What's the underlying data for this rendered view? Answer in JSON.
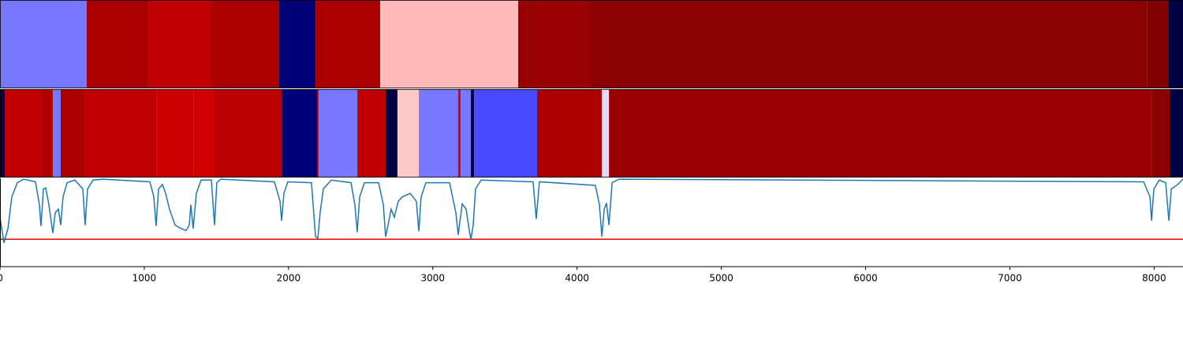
{
  "chart_data": [
    {
      "type": "segments",
      "xlim": [
        0,
        8200
      ],
      "segments": [
        {
          "start": 0,
          "end": 601,
          "color": "#7777ff"
        },
        {
          "start": 601,
          "end": 1028,
          "color": "#aa0000"
        },
        {
          "start": 1028,
          "end": 1465,
          "color": "#c00000"
        },
        {
          "start": 1465,
          "end": 1935,
          "color": "#aa0000"
        },
        {
          "start": 1935,
          "end": 2187,
          "color": "#000077"
        },
        {
          "start": 2187,
          "end": 2635,
          "color": "#aa0000"
        },
        {
          "start": 2635,
          "end": 3592,
          "color": "#ffb9b9"
        },
        {
          "start": 3592,
          "end": 4100,
          "color": "#990000"
        },
        {
          "start": 4100,
          "end": 7950,
          "color": "#8b0000"
        },
        {
          "start": 7950,
          "end": 8097,
          "color": "#800000"
        },
        {
          "start": 8097,
          "end": 8200,
          "color": "#000044"
        }
      ]
    },
    {
      "type": "segments",
      "xlim": [
        0,
        8200
      ],
      "segments": [
        {
          "start": 0,
          "end": 33,
          "color": "#000044"
        },
        {
          "start": 33,
          "end": 284,
          "color": "#c00000"
        },
        {
          "start": 284,
          "end": 366,
          "color": "#b00000"
        },
        {
          "start": 366,
          "end": 421,
          "color": "#7777ff"
        },
        {
          "start": 421,
          "end": 590,
          "color": "#aa0000"
        },
        {
          "start": 590,
          "end": 1083,
          "color": "#c00000"
        },
        {
          "start": 1083,
          "end": 1340,
          "color": "#cc0000"
        },
        {
          "start": 1340,
          "end": 1487,
          "color": "#d00000"
        },
        {
          "start": 1487,
          "end": 1952,
          "color": "#bb0000"
        },
        {
          "start": 1952,
          "end": 2198,
          "color": "#000077"
        },
        {
          "start": 2198,
          "end": 2209,
          "color": "#c00000"
        },
        {
          "start": 2209,
          "end": 2477,
          "color": "#7777ff"
        },
        {
          "start": 2477,
          "end": 2673,
          "color": "#c00000"
        },
        {
          "start": 2673,
          "end": 2755,
          "color": "#000044"
        },
        {
          "start": 2755,
          "end": 2903,
          "color": "#ffc8c8"
        },
        {
          "start": 2903,
          "end": 3176,
          "color": "#7777ff"
        },
        {
          "start": 3176,
          "end": 3193,
          "color": "#dd0000"
        },
        {
          "start": 3193,
          "end": 3264,
          "color": "#7777ff"
        },
        {
          "start": 3264,
          "end": 3286,
          "color": "#000044"
        },
        {
          "start": 3286,
          "end": 3723,
          "color": "#4848ff"
        },
        {
          "start": 3723,
          "end": 4172,
          "color": "#aa0000"
        },
        {
          "start": 4172,
          "end": 4221,
          "color": "#ddddff"
        },
        {
          "start": 4221,
          "end": 7982,
          "color": "#9b0000"
        },
        {
          "start": 7982,
          "end": 8108,
          "color": "#8b0000"
        },
        {
          "start": 8108,
          "end": 8200,
          "color": "#000044"
        }
      ]
    },
    {
      "type": "line",
      "xlim": [
        0,
        8200
      ],
      "ylim": [
        0,
        1
      ],
      "xticks": [
        0,
        1000,
        2000,
        3000,
        4000,
        5000,
        6000,
        7000,
        8000
      ],
      "threshold": 0.31,
      "threshold_color": "#ee0000",
      "color": "#1f77b4",
      "x": [
        0,
        27,
        55,
        82,
        120,
        164,
        246,
        273,
        284,
        301,
        317,
        339,
        366,
        383,
        405,
        421,
        437,
        465,
        519,
        574,
        590,
        607,
        645,
        711,
        1039,
        1066,
        1082,
        1099,
        1126,
        1148,
        1175,
        1214,
        1257,
        1290,
        1312,
        1323,
        1339,
        1361,
        1394,
        1465,
        1487,
        1503,
        1531,
        1902,
        1941,
        1952,
        1968,
        1995,
        2159,
        2187,
        2203,
        2219,
        2241,
        2296,
        2433,
        2460,
        2476,
        2493,
        2526,
        2624,
        2657,
        2673,
        2690,
        2711,
        2733,
        2761,
        2788,
        2843,
        2886,
        2903,
        2919,
        2952,
        3116,
        3160,
        3176,
        3204,
        3231,
        3253,
        3264,
        3280,
        3296,
        3335,
        3695,
        3717,
        3739,
        4127,
        4155,
        4172,
        4188,
        4204,
        4221,
        4243,
        4291,
        7927,
        7971,
        7982,
        7998,
        8036,
        8080,
        8102,
        8119,
        8157,
        8200
      ],
      "values": [
        0.56,
        0.27,
        0.43,
        0.79,
        0.95,
        0.99,
        0.96,
        0.7,
        0.46,
        0.88,
        0.89,
        0.7,
        0.38,
        0.61,
        0.65,
        0.47,
        0.79,
        0.95,
        0.98,
        0.88,
        0.47,
        0.88,
        0.98,
        0.99,
        0.96,
        0.79,
        0.46,
        0.88,
        0.93,
        0.83,
        0.65,
        0.47,
        0.43,
        0.41,
        0.47,
        0.7,
        0.43,
        0.83,
        0.98,
        0.98,
        0.47,
        0.95,
        0.99,
        0.96,
        0.74,
        0.52,
        0.83,
        0.96,
        0.95,
        0.34,
        0.32,
        0.61,
        0.88,
        0.98,
        0.95,
        0.7,
        0.39,
        0.79,
        0.95,
        0.95,
        0.7,
        0.34,
        0.47,
        0.65,
        0.56,
        0.74,
        0.79,
        0.83,
        0.74,
        0.4,
        0.79,
        0.95,
        0.95,
        0.61,
        0.36,
        0.71,
        0.65,
        0.41,
        0.31,
        0.47,
        0.88,
        0.98,
        0.96,
        0.54,
        0.96,
        0.92,
        0.7,
        0.34,
        0.65,
        0.72,
        0.47,
        0.95,
        0.99,
        0.96,
        0.79,
        0.52,
        0.88,
        0.98,
        0.95,
        0.52,
        0.88,
        0.92,
        0.99
      ]
    }
  ]
}
